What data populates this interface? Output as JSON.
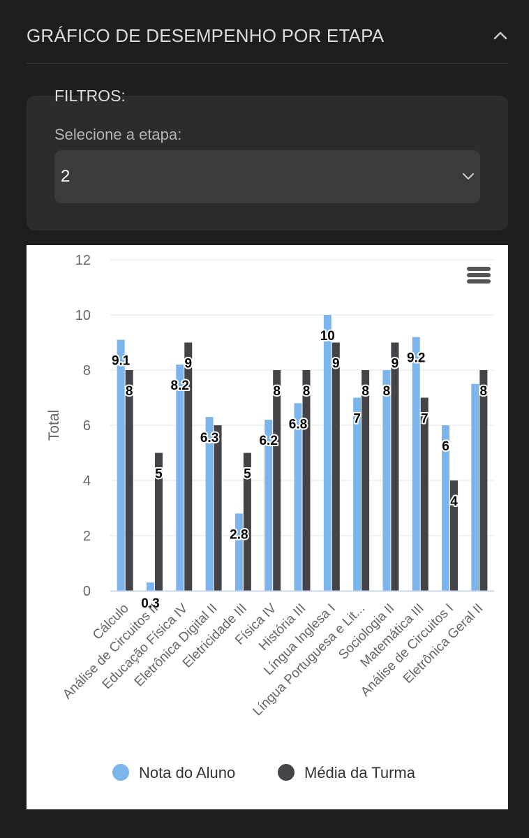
{
  "section": {
    "title": "GRÁFICO DE DESEMPENHO POR ETAPA",
    "collapse_icon": "chevron-up-icon"
  },
  "filters": {
    "label": "FILTROS:",
    "select_label": "Selecione a etapa:",
    "selected_value": "2",
    "dropdown_icon": "chevron-down-icon"
  },
  "chart_menu_icon": "hamburger-menu-icon",
  "chart_data": {
    "type": "bar",
    "title": "",
    "xlabel": "",
    "ylabel": "Total",
    "ylim": [
      0,
      12
    ],
    "yticks": [
      0,
      2,
      4,
      6,
      8,
      10,
      12
    ],
    "grid": true,
    "legend_position": "bottom",
    "categories": [
      "Cálculo",
      "Análise de Circuitos II",
      "Educação Física IV",
      "Eletrônica Digital II",
      "Eletricidade III",
      "Física IV",
      "História III",
      "Língua Inglesa I",
      "Língua Portuguesa e Lit...",
      "Sociologia II",
      "Matemática III",
      "Análise de Circuitos I",
      "Eletrônica Geral II"
    ],
    "series": [
      {
        "name": "Nota do Aluno",
        "color": "#7cb5ec",
        "values": [
          9.1,
          0.3,
          8.2,
          6.3,
          2.8,
          6.2,
          6.8,
          10,
          7,
          8,
          9.2,
          6,
          7.5
        ],
        "labels": [
          "9.1",
          "0.3",
          "8.2",
          "6.3",
          "2.8",
          "6.2",
          "6.8",
          "10",
          "7",
          "8",
          "9.2",
          "6",
          ""
        ]
      },
      {
        "name": "Média da Turma",
        "color": "#434348",
        "values": [
          8,
          5,
          9,
          6,
          5,
          8,
          8,
          9,
          8,
          9,
          7,
          4,
          8
        ],
        "labels": [
          "8",
          "5",
          "9",
          "",
          "5",
          "8",
          "8",
          "9",
          "8",
          "9",
          "7",
          "4",
          "8"
        ]
      }
    ]
  }
}
